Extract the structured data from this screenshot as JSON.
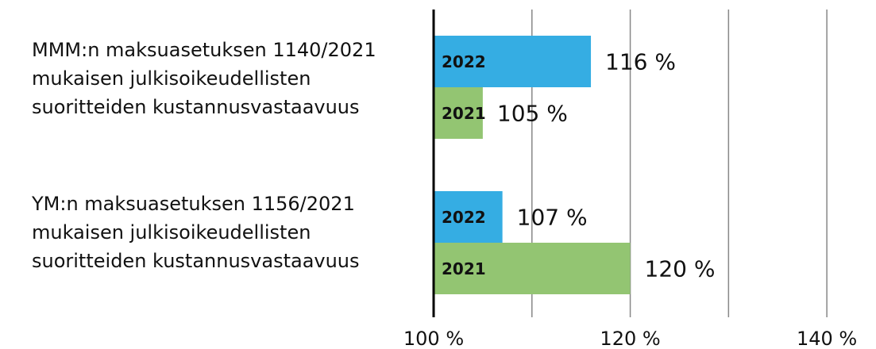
{
  "chart_data": {
    "type": "hbar",
    "categories": [
      "MMM:n maksuasetuksen 1140/2021\nmukaisen julkisoikeudellisten\nsuoritteiden kustannusvastaavuus",
      "YM:n maksuasetuksen 1156/2021\nmukaisen julkisoikeudellisten\nsuoritteiden kustannusvastaavuus"
    ],
    "series": [
      {
        "name": "2022",
        "color": "#35ade3",
        "values": [
          116,
          107
        ],
        "value_labels": [
          "116 %",
          "107 %"
        ]
      },
      {
        "name": "2021",
        "color": "#93c572",
        "values": [
          105,
          120
        ],
        "value_labels": [
          "105 %",
          "120 %"
        ]
      }
    ],
    "xlim": [
      100,
      145
    ],
    "xticks": [
      {
        "value": 100,
        "label": "100 %"
      },
      {
        "value": 120,
        "label": "120 %"
      },
      {
        "value": 140,
        "label": "140 %"
      }
    ],
    "xminor": [
      110,
      130
    ],
    "grid": true
  }
}
